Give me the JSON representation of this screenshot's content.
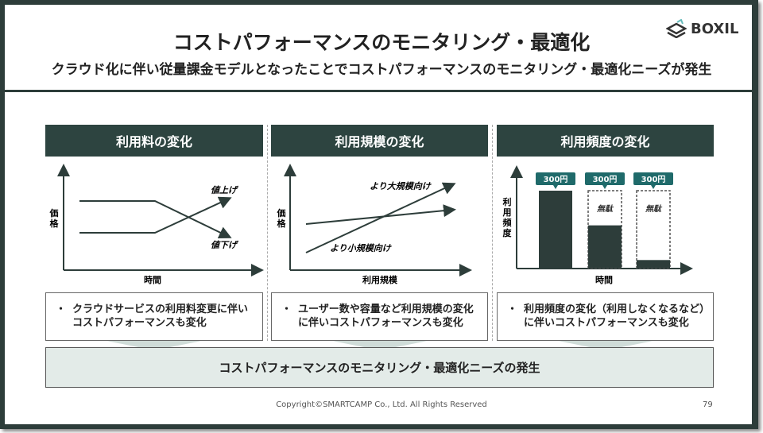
{
  "title": "コストパフォーマンスのモニタリング・最適化",
  "subtitle": "クラウド化に伴い従量課金モデルとなったことでコストパフォーマンスのモニタリング・最適化ニーズが発生",
  "logo": "BOXIL",
  "panels": [
    {
      "header": "利用料の変化",
      "ylabel": [
        "価",
        "格"
      ],
      "xlabel": "時間",
      "line_up": "値上げ",
      "line_down": "値下げ",
      "bullet": "・",
      "text": [
        "クラウドサービスの利用料変更に伴い",
        "コストパフォーマンスも変化"
      ]
    },
    {
      "header": "利用規模の変化",
      "ylabel": [
        "価",
        "格"
      ],
      "xlabel": "利用規模",
      "line_large": "より大規模向け",
      "line_small": "より小規模向け",
      "bullet": "・",
      "text": [
        "ユーザー数や容量など利用規模の変化",
        "に伴いコストパフォーマンスも変化"
      ]
    },
    {
      "header": "利用頻度の変化",
      "ylabel": [
        "利",
        "用",
        "頻",
        "度"
      ],
      "xlabel": "時間",
      "price": "300円",
      "waste": "無駄",
      "usage": [
        1.0,
        0.55,
        0.1
      ],
      "bullet": "・",
      "text": [
        "利用頻度の変化（利用しなくなるなど）",
        "に伴いコストパフォーマンスも変化"
      ]
    }
  ],
  "conclusion": "コストパフォーマンスのモニタリング・最適化ニーズの発生",
  "footer": "Copyright©SMARTCAMP Co., Ltd. All Rights Reserved",
  "page": "79"
}
